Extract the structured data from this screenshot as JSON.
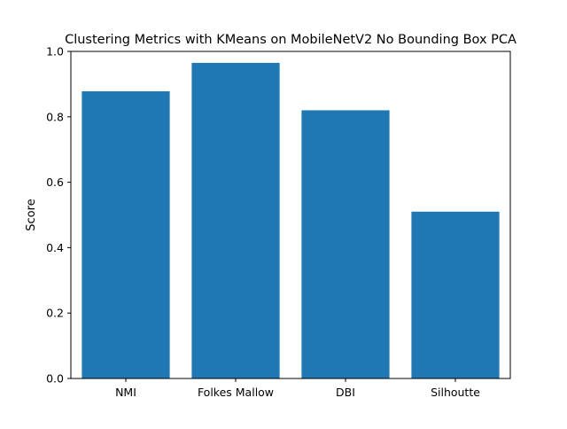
{
  "chart_data": {
    "type": "bar",
    "title": "Clustering Metrics with KMeans on MobileNetV2 No Bounding Box PCA",
    "xlabel": "",
    "ylabel": "Score",
    "categories": [
      "NMI",
      "Folkes Mallow",
      "DBI",
      "Silhoutte"
    ],
    "values": [
      0.878,
      0.965,
      0.82,
      0.51
    ],
    "ylim": [
      0.0,
      1.0
    ],
    "yticks": [
      "0.0",
      "0.2",
      "0.4",
      "0.6",
      "0.8",
      "1.0"
    ],
    "grid": false,
    "legend": "none",
    "bar_color": "#1f77b4"
  }
}
